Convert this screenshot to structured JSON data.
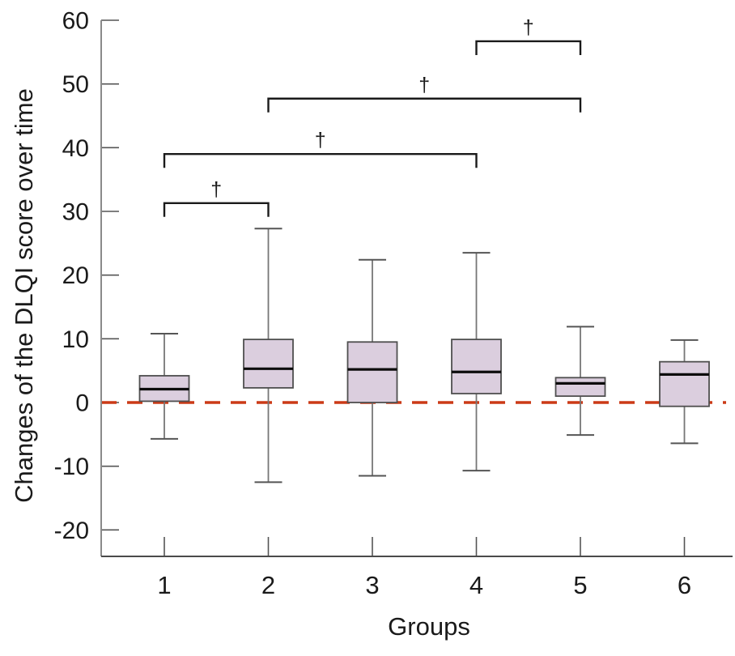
{
  "chart_data": {
    "type": "boxplot",
    "title": "",
    "xlabel": "Groups",
    "ylabel": "Changes of the DLQI score over time",
    "ylim": [
      -24,
      60
    ],
    "yticks": [
      60,
      50,
      40,
      30,
      20,
      10,
      0,
      -10,
      -20
    ],
    "categories": [
      "1",
      "2",
      "3",
      "4",
      "5",
      "6"
    ],
    "grid": false,
    "legend": "none",
    "boxes": [
      {
        "group": "1",
        "whisker_low": -5.7,
        "q1": 0.2,
        "median": 2.1,
        "q3": 4.2,
        "whisker_high": 10.8
      },
      {
        "group": "2",
        "whisker_low": -12.5,
        "q1": 2.3,
        "median": 5.3,
        "q3": 9.9,
        "whisker_high": 27.3
      },
      {
        "group": "3",
        "whisker_low": -11.5,
        "q1": 0.0,
        "median": 5.2,
        "q3": 9.5,
        "whisker_high": 22.4
      },
      {
        "group": "4",
        "whisker_low": -10.7,
        "q1": 1.4,
        "median": 4.8,
        "q3": 9.9,
        "whisker_high": 23.5
      },
      {
        "group": "5",
        "whisker_low": -5.1,
        "q1": 1.0,
        "median": 3.0,
        "q3": 3.9,
        "whisker_high": 11.9
      },
      {
        "group": "6",
        "whisker_low": -6.4,
        "q1": -0.6,
        "median": 4.4,
        "q3": 6.4,
        "whisker_high": 9.8
      }
    ],
    "reference_line": {
      "y": 0,
      "style": "dashed",
      "color": "#cb3a17"
    },
    "significance_brackets": [
      {
        "groups": [
          "1",
          "2"
        ],
        "bar_y": 31.3,
        "label": "†"
      },
      {
        "groups": [
          "1",
          "4"
        ],
        "bar_y": 39.0,
        "label": "†"
      },
      {
        "groups": [
          "2",
          "5"
        ],
        "bar_y": 47.7,
        "label": "†"
      },
      {
        "groups": [
          "4",
          "5"
        ],
        "bar_y": 56.7,
        "label": "†"
      }
    ],
    "colors": {
      "box_fill": "#dbcede",
      "box_border": "#4f4f4f",
      "median": "#0d0d0d",
      "whisker": "#777777",
      "cap": "#555555",
      "axis": "#8a8a8a",
      "x_axis": "#4a4a4a",
      "tick": "#555555",
      "bracket": "#1a1a1a",
      "text": "#1a1a1a"
    }
  }
}
